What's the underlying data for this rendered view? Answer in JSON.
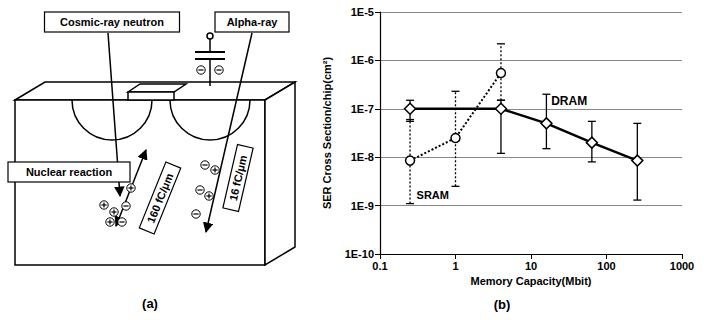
{
  "diagram": {
    "panel_label": "(a)",
    "sources": [
      "Cosmic-ray neutron",
      "Alpha-ray"
    ],
    "events": [
      "Nuclear reaction"
    ],
    "tracks": [
      "160 fC/μm",
      "16 fC/μm"
    ]
  },
  "chart_data": {
    "type": "line",
    "title": "(b)",
    "x_label": "Memory Capacity(Mbit)",
    "y_label": "SER Cross Section/chip(cm²)",
    "log": true,
    "grid": true,
    "xlim": [
      0.1,
      1000
    ],
    "xticks": [
      0.1,
      1,
      10,
      100,
      1000
    ],
    "ylim": [
      1e-10,
      1e-05
    ],
    "yticks": [
      {
        "value": 1e-10,
        "label": "1E-10"
      },
      {
        "value": 1e-09,
        "label": "1E-9"
      },
      {
        "value": 1e-08,
        "label": "1E-8"
      },
      {
        "value": 1e-07,
        "label": "1E-7"
      },
      {
        "value": 1e-06,
        "label": "1E-6"
      },
      {
        "value": 1e-05,
        "label": "1E-5"
      }
    ],
    "series": [
      {
        "name": "DRAM",
        "color": "#000000",
        "marker": "diamond",
        "line_style": "solid",
        "x": [
          0.25,
          4,
          16,
          64,
          256
        ],
        "values": [
          1e-07,
          1e-07,
          5e-08,
          2e-08,
          8.5e-09
        ],
        "errors": [
          [
            5.5e-08,
            1.5e-07
          ],
          [
            1.2e-08,
            1.5e-07
          ],
          [
            1.5e-08,
            2e-07
          ],
          [
            8e-09,
            5.5e-08
          ],
          [
            1.3e-09,
            5e-08
          ]
        ]
      },
      {
        "name": "SRAM",
        "color": "#000000",
        "marker": "circle",
        "line_style": "dotted",
        "x": [
          0.25,
          1,
          4
        ],
        "values": [
          8.5e-09,
          2.5e-08,
          5.5e-07
        ],
        "errors": [
          [
            1.1e-09,
            6e-08
          ],
          [
            2.5e-09,
            2.3e-07
          ],
          [
            1.5e-07,
            2.2e-06
          ]
        ]
      }
    ]
  }
}
